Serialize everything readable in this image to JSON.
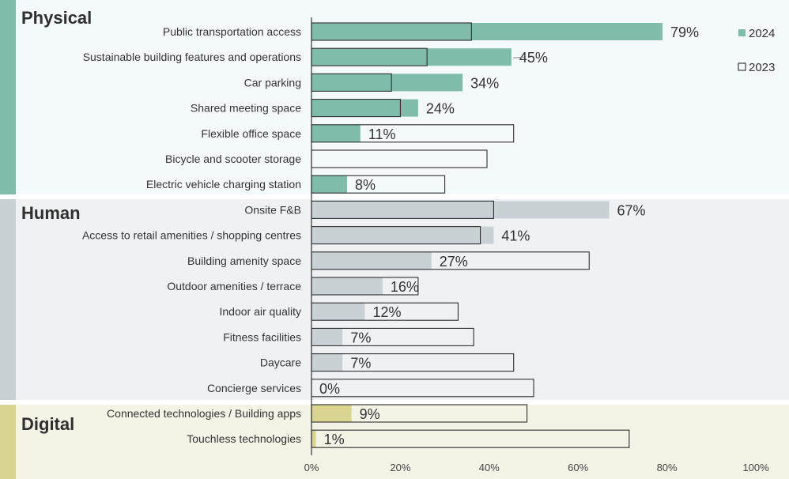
{
  "chart_data": {
    "type": "bar",
    "orientation": "horizontal",
    "xlim": [
      0,
      100
    ],
    "x_ticks": [
      "0%",
      "20%",
      "40%",
      "60%",
      "80%",
      "100%"
    ],
    "legend": {
      "position": "top-right",
      "series": [
        "2024",
        "2023"
      ]
    },
    "groups": [
      {
        "name": "Physical",
        "color": "#7fbcaa",
        "band": "#f4f9fa",
        "rows": [
          {
            "label": "Public transportation access",
            "v2024": 79,
            "v2023": 36,
            "value_label": "79%"
          },
          {
            "label": "Sustainable building features and operations",
            "v2024": 45,
            "v2023": 26,
            "value_label": "45%"
          },
          {
            "label": "Car parking",
            "v2024": 34,
            "v2023": 18,
            "value_label": "34%"
          },
          {
            "label": "Shared meeting space",
            "v2024": 24,
            "v2023": 20,
            "value_label": "24%"
          },
          {
            "label": "Flexible office space",
            "v2024": 11,
            "v2023": 45.5,
            "value_label": "11%"
          },
          {
            "label": "Bicycle and scooter storage",
            "v2024": 0,
            "v2023": 39.5,
            "value_label": ""
          },
          {
            "label": "Electric vehicle charging station",
            "v2024": 8,
            "v2023": 30,
            "value_label": "8%"
          }
        ]
      },
      {
        "name": "Human",
        "color": "#c8d1d3",
        "band": "#f0f1f3",
        "rows": [
          {
            "label": "Onsite F&B",
            "v2024": 67,
            "v2023": 41,
            "value_label": "67%"
          },
          {
            "label": "Access to retail amenities / shopping centres",
            "v2024": 41,
            "v2023": 38,
            "value_label": "41%"
          },
          {
            "label": "Building amenity space",
            "v2024": 27,
            "v2023": 62.5,
            "value_label": "27%"
          },
          {
            "label": "Outdoor amenities / terrace",
            "v2024": 16,
            "v2023": 24,
            "value_label": "16%"
          },
          {
            "label": "Indoor air quality",
            "v2024": 12,
            "v2023": 33,
            "value_label": "12%"
          },
          {
            "label": "Fitness facilities",
            "v2024": 7,
            "v2023": 36.5,
            "value_label": "7%"
          },
          {
            "label": "Daycare",
            "v2024": 7,
            "v2023": 45.5,
            "value_label": "7%"
          },
          {
            "label": "Concierge services",
            "v2024": 0,
            "v2023": 50,
            "value_label": "0%"
          }
        ]
      },
      {
        "name": "Digital",
        "color": "#d9d590",
        "band": "#f4f4e6",
        "rows": [
          {
            "label": "Connected technologies / Building apps",
            "v2024": 9,
            "v2023": 48.5,
            "value_label": "9%"
          },
          {
            "label": "Touchless technologies",
            "v2024": 1,
            "v2023": 71.5,
            "value_label": "1%"
          }
        ]
      }
    ]
  }
}
